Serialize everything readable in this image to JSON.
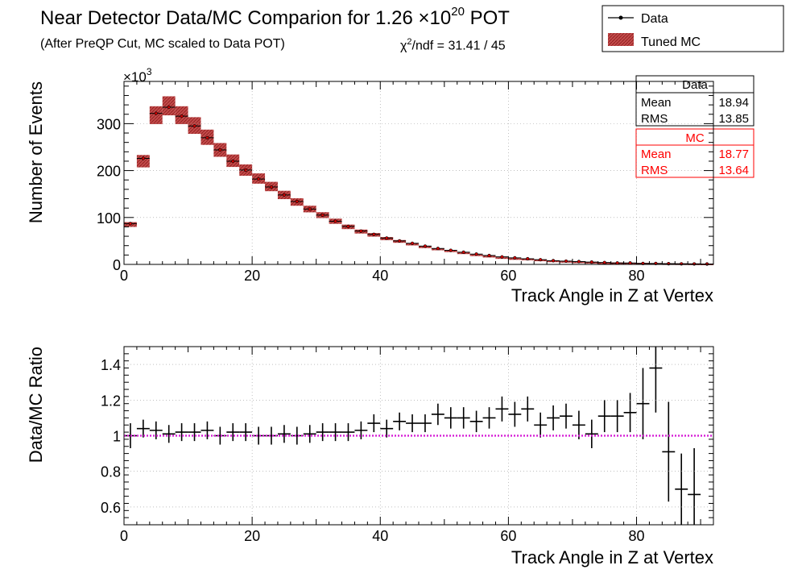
{
  "header": {
    "title_prefix": "Near Detector Data/MC Comparion for 1.26 ×10",
    "title_exp": "20",
    "title_suffix": " POT",
    "subtitle": "(After PreQP Cut, MC scaled to Data POT)",
    "chi2_prefix": "χ",
    "chi2_exp": "2",
    "chi2_rest": "/ndf = 31.41 / 45"
  },
  "legend": {
    "items": [
      {
        "label": "Data",
        "color": "#000000",
        "style": "marker-line"
      },
      {
        "label": "Tuned MC",
        "color": "#cc3333",
        "style": "hatched-box"
      }
    ]
  },
  "stats": {
    "data": {
      "title": "Data",
      "color": "#000000",
      "rows": [
        {
          "label": "Mean",
          "value": "18.94"
        },
        {
          "label": "RMS",
          "value": "13.85"
        }
      ]
    },
    "mc": {
      "title": "MC",
      "color": "#ff0000",
      "rows": [
        {
          "label": "Mean",
          "value": "18.77"
        },
        {
          "label": "RMS",
          "value": "13.64"
        }
      ]
    }
  },
  "chart_data": [
    {
      "type": "histogram",
      "xlabel": "Track Angle in Z at Vertex",
      "ylabel": "Number of Events",
      "y_multiplier": "×10",
      "y_multiplier_exp": "3",
      "xlim": [
        0,
        92
      ],
      "ylim": [
        0,
        390
      ],
      "x_ticks": [
        0,
        20,
        40,
        60,
        80
      ],
      "y_ticks": [
        0,
        100,
        200,
        300
      ],
      "bin_width": 2,
      "bin_centers": [
        1,
        3,
        5,
        7,
        9,
        11,
        13,
        15,
        17,
        19,
        21,
        23,
        25,
        27,
        29,
        31,
        33,
        35,
        37,
        39,
        41,
        43,
        45,
        47,
        49,
        51,
        53,
        55,
        57,
        59,
        61,
        63,
        65,
        67,
        69,
        71,
        73,
        75,
        77,
        79,
        81,
        83,
        85,
        87,
        89,
        91
      ],
      "series": [
        {
          "name": "Data",
          "color": "#000000",
          "values": [
            87,
            226,
            322,
            335,
            316,
            295,
            270,
            244,
            220,
            201,
            182,
            165,
            148,
            134,
            118,
            105,
            92,
            81,
            71,
            64,
            56,
            50,
            45,
            39,
            34,
            30,
            26,
            22,
            19,
            16,
            14,
            12,
            10,
            8,
            7,
            6,
            5,
            4,
            3,
            3,
            2,
            2,
            1.5,
            1.2,
            1,
            0.8
          ]
        },
        {
          "name": "Tuned MC",
          "color": "#cc3333",
          "values": [
            85,
            220,
            318,
            338,
            318,
            296,
            271,
            244,
            221,
            201,
            183,
            166,
            148,
            133,
            118,
            105,
            92,
            80,
            70,
            63,
            55,
            49,
            43,
            37,
            32,
            28,
            24,
            20,
            17,
            14,
            12,
            11,
            9,
            7,
            6,
            5,
            4,
            3,
            3,
            2,
            2,
            1.5,
            1.2,
            1,
            0.8,
            0.6
          ],
          "band_halfwidth_frac": 0.06
        }
      ]
    },
    {
      "type": "ratio",
      "xlabel": "Track Angle in Z at Vertex",
      "ylabel": "Data/MC Ratio",
      "xlim": [
        0,
        92
      ],
      "ylim": [
        0.5,
        1.5
      ],
      "x_ticks": [
        0,
        20,
        40,
        60,
        80
      ],
      "y_ticks": [
        0.6,
        0.8,
        1,
        1.2,
        1.4
      ],
      "y_tick_labels": [
        "0.6",
        "0.8",
        "1",
        "1.2",
        "1.4"
      ],
      "reference_line": {
        "value": 1.0,
        "color": "#dd00dd"
      },
      "points": [
        {
          "x": 1,
          "y": 1.0,
          "err": 0.07
        },
        {
          "x": 3,
          "y": 1.04,
          "err": 0.05
        },
        {
          "x": 5,
          "y": 1.03,
          "err": 0.05
        },
        {
          "x": 7,
          "y": 1.01,
          "err": 0.05
        },
        {
          "x": 9,
          "y": 1.02,
          "err": 0.05
        },
        {
          "x": 11,
          "y": 1.02,
          "err": 0.05
        },
        {
          "x": 13,
          "y": 1.03,
          "err": 0.05
        },
        {
          "x": 15,
          "y": 1.0,
          "err": 0.05
        },
        {
          "x": 17,
          "y": 1.02,
          "err": 0.05
        },
        {
          "x": 19,
          "y": 1.02,
          "err": 0.05
        },
        {
          "x": 21,
          "y": 1.0,
          "err": 0.05
        },
        {
          "x": 23,
          "y": 1.0,
          "err": 0.05
        },
        {
          "x": 25,
          "y": 1.01,
          "err": 0.05
        },
        {
          "x": 27,
          "y": 1.0,
          "err": 0.05
        },
        {
          "x": 29,
          "y": 1.01,
          "err": 0.05
        },
        {
          "x": 31,
          "y": 1.02,
          "err": 0.05
        },
        {
          "x": 33,
          "y": 1.02,
          "err": 0.05
        },
        {
          "x": 35,
          "y": 1.02,
          "err": 0.05
        },
        {
          "x": 37,
          "y": 1.03,
          "err": 0.05
        },
        {
          "x": 39,
          "y": 1.07,
          "err": 0.05
        },
        {
          "x": 41,
          "y": 1.04,
          "err": 0.05
        },
        {
          "x": 43,
          "y": 1.08,
          "err": 0.05
        },
        {
          "x": 45,
          "y": 1.07,
          "err": 0.05
        },
        {
          "x": 47,
          "y": 1.07,
          "err": 0.05
        },
        {
          "x": 49,
          "y": 1.12,
          "err": 0.06
        },
        {
          "x": 51,
          "y": 1.1,
          "err": 0.06
        },
        {
          "x": 53,
          "y": 1.1,
          "err": 0.06
        },
        {
          "x": 55,
          "y": 1.08,
          "err": 0.06
        },
        {
          "x": 57,
          "y": 1.1,
          "err": 0.06
        },
        {
          "x": 59,
          "y": 1.15,
          "err": 0.07
        },
        {
          "x": 61,
          "y": 1.12,
          "err": 0.07
        },
        {
          "x": 63,
          "y": 1.15,
          "err": 0.07
        },
        {
          "x": 65,
          "y": 1.06,
          "err": 0.07
        },
        {
          "x": 67,
          "y": 1.1,
          "err": 0.07
        },
        {
          "x": 69,
          "y": 1.11,
          "err": 0.07
        },
        {
          "x": 71,
          "y": 1.06,
          "err": 0.08
        },
        {
          "x": 73,
          "y": 1.01,
          "err": 0.08
        },
        {
          "x": 75,
          "y": 1.11,
          "err": 0.09
        },
        {
          "x": 77,
          "y": 1.11,
          "err": 0.09
        },
        {
          "x": 79,
          "y": 1.13,
          "err": 0.11
        },
        {
          "x": 81,
          "y": 1.18,
          "err": 0.2
        },
        {
          "x": 83,
          "y": 1.38,
          "err": 0.25
        },
        {
          "x": 85,
          "y": 0.91,
          "err": 0.28
        },
        {
          "x": 87,
          "y": 0.7,
          "err": 0.2
        },
        {
          "x": 89,
          "y": 0.67,
          "err": 0.26
        }
      ]
    }
  ]
}
